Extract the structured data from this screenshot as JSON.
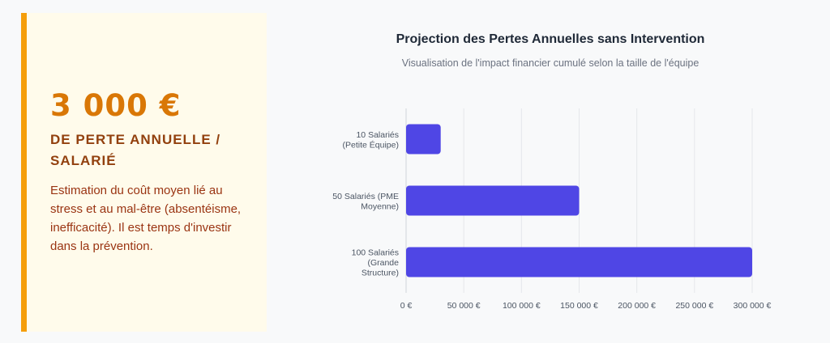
{
  "card": {
    "amount": "3 000 €",
    "subtitle": "DE PERTE ANNUELLE / SALARIÉ",
    "description": "Estimation du coût moyen lié au stress et au mal-être (absentéisme, inefficacité). Il est temps d'investir dans la prévention."
  },
  "chart_data": {
    "type": "bar",
    "orientation": "horizontal",
    "title": "Projection des Pertes Annuelles sans Intervention",
    "subtitle": "Visualisation de l'impact financier cumulé selon la taille de l'équipe",
    "categories": [
      [
        "10 Salariés",
        "(Petite Équipe)"
      ],
      [
        "50 Salariés (PME",
        "Moyenne)"
      ],
      [
        "100 Salariés",
        "(Grande",
        "Structure)"
      ]
    ],
    "values": [
      30000,
      150000,
      300000
    ],
    "xlim": [
      0,
      300000
    ],
    "xticks": [
      0,
      50000,
      100000,
      150000,
      200000,
      250000,
      300000
    ],
    "xtick_labels": [
      "0 €",
      "50 000 €",
      "100 000 €",
      "150 000 €",
      "200 000 €",
      "250 000 €",
      "300 000 €"
    ],
    "grid": true,
    "legend": false,
    "bar_color": "#4f46e5"
  }
}
